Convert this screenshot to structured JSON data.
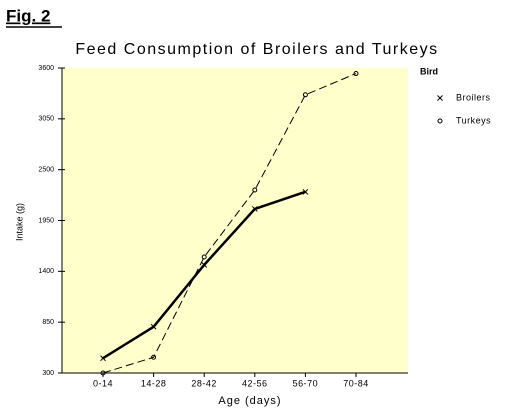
{
  "figure_label": "Fig. 2",
  "chart_data": {
    "type": "line",
    "title": "Feed Consumption of Broilers and Turkeys",
    "x_label": "Age (days)",
    "y_label": "Intake (g)",
    "categories": [
      "0-14",
      "14-28",
      "28-42",
      "42-56",
      "56-70",
      "70-84"
    ],
    "series": [
      {
        "name": "Broilers",
        "color": "#000000",
        "marker": "x",
        "line_style": "solid",
        "values": [
          460,
          800,
          1470,
          2075,
          2260,
          null
        ]
      },
      {
        "name": "Turkeys",
        "color": "#000000",
        "marker": "o",
        "line_style": "dashed",
        "values": [
          300,
          470,
          1555,
          2280,
          3310,
          3540
        ]
      }
    ],
    "ylim": [
      300,
      3600
    ],
    "yticks": [
      300,
      850,
      1400,
      1950,
      2500,
      3050,
      3600
    ],
    "legend": "right",
    "legend_title": "Bird",
    "background": "#ffffcc"
  }
}
